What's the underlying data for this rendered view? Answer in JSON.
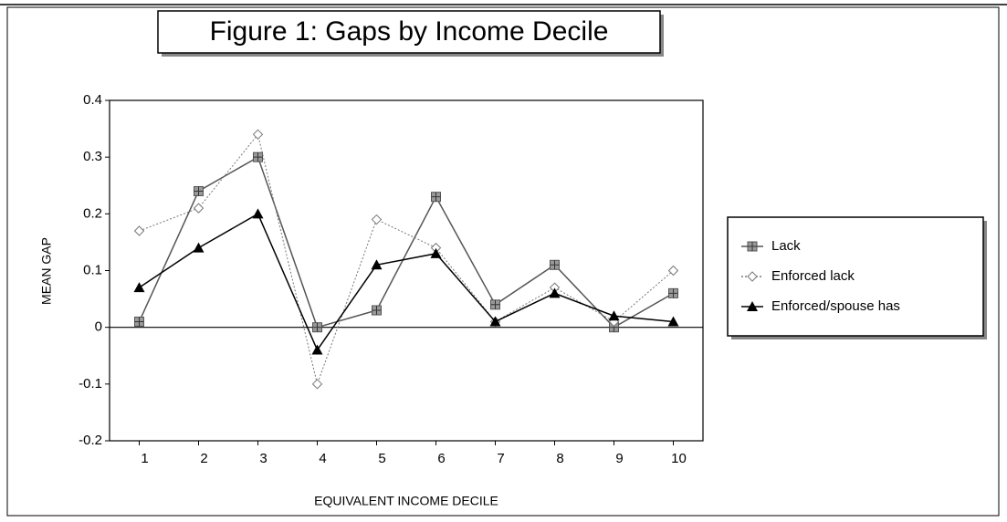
{
  "chart_data": {
    "type": "line",
    "title": "Figure 1: Gaps by Income Decile",
    "x_label": "EQUIVALENT INCOME DECILE",
    "y_label": "MEAN GAP",
    "categories": [
      "1",
      "2",
      "3",
      "4",
      "5",
      "6",
      "7",
      "8",
      "9",
      "10"
    ],
    "series": [
      {
        "name": "Lack",
        "color": "#555555",
        "marker": "square",
        "dash": "solid",
        "values": [
          0.01,
          0.24,
          0.3,
          0.0,
          0.03,
          0.23,
          0.04,
          0.11,
          0.0,
          0.06
        ]
      },
      {
        "name": "Enforced lack",
        "color": "#777777",
        "marker": "diamond",
        "dash": "dotted",
        "values": [
          0.17,
          0.21,
          0.34,
          -0.1,
          0.19,
          0.14,
          0.01,
          0.07,
          0.01,
          0.1
        ]
      },
      {
        "name": "Enforced/spouse has",
        "color": "#000000",
        "marker": "triangle",
        "dash": "solid",
        "values": [
          0.07,
          0.14,
          0.2,
          -0.04,
          0.11,
          0.13,
          0.01,
          0.06,
          0.02,
          0.01
        ]
      }
    ],
    "ylim": [
      -0.2,
      0.4
    ],
    "yticks": [
      0.4,
      0.3,
      0.2,
      0.1,
      0,
      -0.1,
      -0.2
    ],
    "grid": false,
    "legend": "right"
  }
}
